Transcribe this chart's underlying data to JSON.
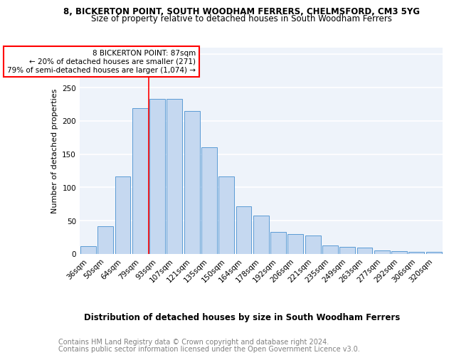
{
  "title1": "8, BICKERTON POINT, SOUTH WOODHAM FERRERS, CHELMSFORD, CM3 5YG",
  "title2": "Size of property relative to detached houses in South Woodham Ferrers",
  "xlabel": "Distribution of detached houses by size in South Woodham Ferrers",
  "ylabel": "Number of detached properties",
  "categories": [
    "36sqm",
    "50sqm",
    "64sqm",
    "79sqm",
    "93sqm",
    "107sqm",
    "121sqm",
    "135sqm",
    "150sqm",
    "164sqm",
    "178sqm",
    "192sqm",
    "206sqm",
    "221sqm",
    "235sqm",
    "249sqm",
    "263sqm",
    "277sqm",
    "292sqm",
    "306sqm",
    "320sqm"
  ],
  "values": [
    12,
    42,
    117,
    219,
    233,
    233,
    215,
    160,
    116,
    72,
    58,
    33,
    30,
    28,
    13,
    11,
    10,
    5,
    4,
    3,
    3
  ],
  "bar_color": "#c5d8f0",
  "bar_edge_color": "#5b9bd5",
  "annotation_box_text": "8 BICKERTON POINT: 87sqm\n← 20% of detached houses are smaller (271)\n79% of semi-detached houses are larger (1,074) →",
  "box_color": "white",
  "box_edge_color": "red",
  "vline_color": "red",
  "vline_x": 3.5,
  "ylim": [
    0,
    310
  ],
  "yticks": [
    0,
    50,
    100,
    150,
    200,
    250,
    300
  ],
  "footer1": "Contains HM Land Registry data © Crown copyright and database right 2024.",
  "footer2": "Contains public sector information licensed under the Open Government Licence v3.0.",
  "bg_color": "#eef3fa",
  "grid_color": "white",
  "title1_fontsize": 8.5,
  "title2_fontsize": 8.5,
  "xlabel_fontsize": 8.5,
  "ylabel_fontsize": 8,
  "footer_fontsize": 7,
  "tick_fontsize": 7.5,
  "annot_fontsize": 7.5
}
